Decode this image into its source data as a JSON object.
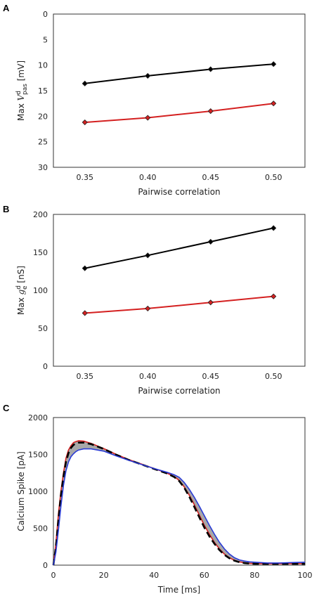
{
  "chart_data": [
    {
      "panel": "A",
      "type": "line",
      "x": [
        0.35,
        0.4,
        0.45,
        0.5
      ],
      "xticks": [
        "0.35",
        "0.40",
        "0.45",
        "0.50"
      ],
      "yticks": [
        "0",
        "5",
        "10",
        "15",
        "20",
        "25",
        "30"
      ],
      "ylim": [
        0,
        30
      ],
      "y_inverted": true,
      "xlabel": "Pairwise correlation",
      "ylabel_prefix": "Max ",
      "ylabel_symbol": "V",
      "ylabel_sup": "d",
      "ylabel_sub": "pas",
      "ylabel_suffix": " [mV]",
      "series": [
        {
          "color": "#000000",
          "values": [
            13.6,
            12.1,
            10.8,
            9.8
          ]
        },
        {
          "color": "#d42020",
          "values": [
            21.2,
            20.3,
            19.0,
            17.5
          ]
        }
      ],
      "grid": false
    },
    {
      "panel": "B",
      "type": "line",
      "x": [
        0.35,
        0.4,
        0.45,
        0.5
      ],
      "xticks": [
        "0.35",
        "0.40",
        "0.45",
        "0.50"
      ],
      "yticks": [
        "0",
        "50",
        "100",
        "150",
        "200"
      ],
      "ylim": [
        0,
        200
      ],
      "y_inverted": false,
      "xlabel": "Pairwise correlation",
      "ylabel_prefix": "Max ",
      "ylabel_symbol": "g",
      "ylabel_sup": "d",
      "ylabel_sub": "e",
      "ylabel_suffix": " [nS]",
      "series": [
        {
          "color": "#000000",
          "values": [
            129,
            146,
            164,
            182
          ]
        },
        {
          "color": "#d42020",
          "values": [
            70,
            76,
            84,
            92
          ]
        }
      ],
      "grid": false
    },
    {
      "panel": "C",
      "type": "line",
      "xticks": [
        "0",
        "20",
        "40",
        "60",
        "80",
        "100"
      ],
      "yticks": [
        "0",
        "500",
        "1000",
        "1500",
        "2000"
      ],
      "xlim": [
        0,
        100
      ],
      "ylim": [
        0,
        2000
      ],
      "xlabel": "Time [ms]",
      "ylabel": "Calcium Spike [pA]",
      "series": [
        {
          "color": "#d42020",
          "x": [
            0,
            1,
            2,
            3,
            4,
            5,
            6,
            7,
            8,
            9,
            10,
            12,
            15,
            20,
            25,
            30,
            35,
            40,
            45,
            48,
            50,
            52,
            54,
            56,
            58,
            60,
            62,
            64,
            66,
            68,
            70,
            72,
            74,
            76,
            78,
            80,
            85,
            90,
            95,
            100
          ],
          "values": [
            0,
            300,
            700,
            1000,
            1250,
            1450,
            1560,
            1620,
            1660,
            1675,
            1685,
            1680,
            1650,
            1580,
            1500,
            1430,
            1370,
            1310,
            1250,
            1200,
            1150,
            1060,
            950,
            820,
            680,
            540,
            420,
            310,
            220,
            150,
            100,
            65,
            45,
            32,
            25,
            20,
            20,
            20,
            20,
            20
          ]
        },
        {
          "color": "#000000",
          "dashed": true,
          "x": [
            0,
            1,
            2,
            3,
            4,
            5,
            6,
            7,
            8,
            9,
            10,
            12,
            15,
            20,
            25,
            30,
            35,
            40,
            45,
            48,
            50,
            52,
            54,
            56,
            58,
            60,
            62,
            64,
            66,
            68,
            70,
            72,
            74,
            76,
            78,
            80,
            85,
            90,
            95,
            100
          ],
          "values": [
            0,
            250,
            620,
            950,
            1200,
            1400,
            1520,
            1590,
            1630,
            1650,
            1660,
            1660,
            1640,
            1575,
            1495,
            1425,
            1365,
            1305,
            1245,
            1195,
            1140,
            1050,
            930,
            790,
            650,
            510,
            390,
            290,
            205,
            140,
            92,
            60,
            40,
            28,
            22,
            18,
            18,
            18,
            18,
            18
          ]
        },
        {
          "color": "#2a3bd6",
          "x": [
            0,
            1,
            2,
            3,
            4,
            5,
            6,
            7,
            8,
            9,
            10,
            12,
            15,
            20,
            25,
            30,
            35,
            40,
            45,
            48,
            50,
            52,
            54,
            56,
            58,
            60,
            62,
            64,
            66,
            68,
            70,
            72,
            74,
            76,
            78,
            80,
            85,
            90,
            95,
            100
          ],
          "values": [
            0,
            180,
            480,
            800,
            1080,
            1280,
            1400,
            1470,
            1510,
            1540,
            1560,
            1575,
            1575,
            1545,
            1480,
            1420,
            1365,
            1310,
            1260,
            1225,
            1190,
            1120,
            1030,
            920,
            800,
            670,
            540,
            420,
            310,
            220,
            150,
            100,
            70,
            55,
            45,
            40,
            30,
            30,
            35,
            40
          ]
        }
      ],
      "band_color": "#a8a8a8",
      "grid": false
    }
  ]
}
